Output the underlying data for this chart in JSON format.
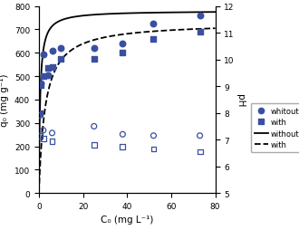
{
  "title": "",
  "xlabel": "C₀ (mg L⁻¹)",
  "ylabel_left": "q₀ (mg g⁻¹)",
  "ylabel_right": "pH",
  "xlim": [
    0,
    80
  ],
  "ylim_left": [
    0,
    800
  ],
  "ylim_right": [
    5,
    12
  ],
  "scatter_without_x": [
    0.5,
    1.0,
    2.0,
    4.0,
    6.0,
    10.0,
    25.0,
    38.0,
    52.0,
    73.0
  ],
  "scatter_without_y": [
    460,
    470,
    595,
    505,
    610,
    620,
    620,
    638,
    725,
    760
  ],
  "scatter_with_x": [
    0.5,
    1.0,
    2.0,
    4.0,
    6.0,
    10.0,
    25.0,
    38.0,
    52.0,
    73.0
  ],
  "scatter_with_y": [
    340,
    460,
    500,
    535,
    540,
    575,
    575,
    600,
    660,
    690
  ],
  "scatter_ph_without_x": [
    0.5,
    2.0,
    6.0,
    25.0,
    38.0,
    52.0,
    73.0
  ],
  "scatter_ph_without_y": [
    7.9,
    7.35,
    7.25,
    7.5,
    7.2,
    7.15,
    7.15
  ],
  "scatter_ph_with_x": [
    0.5,
    2.0,
    6.0,
    25.0,
    38.0,
    52.0,
    73.0
  ],
  "scatter_ph_with_y": [
    7.15,
    7.05,
    6.95,
    6.8,
    6.75,
    6.65,
    6.55
  ],
  "langmuir_without_qm": 780,
  "langmuir_without_b": 1.8,
  "langmuir_with_qm": 730,
  "langmuir_with_b": 0.35,
  "color": "#3a4fa0",
  "background_color": "#ffffff",
  "xticks": [
    0,
    20,
    40,
    60,
    80
  ],
  "yticks_left": [
    0,
    100,
    200,
    300,
    400,
    500,
    600,
    700,
    800
  ],
  "yticks_right": [
    5,
    6,
    7,
    8,
    9,
    10,
    11,
    12
  ]
}
